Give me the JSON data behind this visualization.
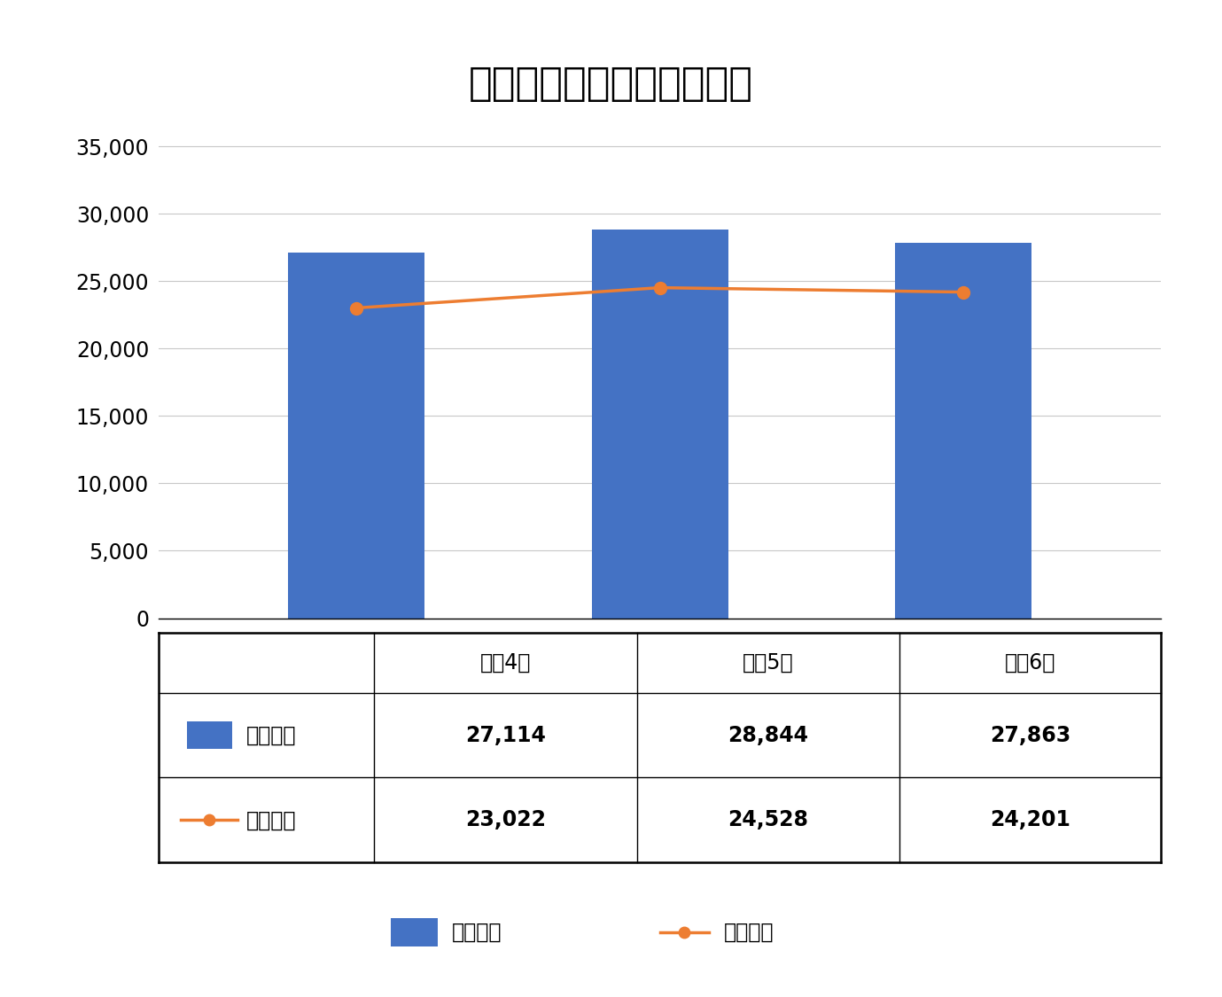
{
  "title": "過去の救急出動・搬送人員",
  "categories": [
    "令和4年",
    "令和5年",
    "令和6年"
  ],
  "bar_values": [
    27114,
    28844,
    27863
  ],
  "line_values": [
    23022,
    24528,
    24201
  ],
  "bar_data_texts": [
    "27,114",
    "28,844",
    "27,863"
  ],
  "line_data_texts": [
    "23,022",
    "24,528",
    "24,201"
  ],
  "bar_color": "#4472C4",
  "line_color": "#ED7D31",
  "ylim": [
    0,
    37000
  ],
  "yticks": [
    0,
    5000,
    10000,
    15000,
    20000,
    25000,
    30000,
    35000
  ],
  "bar_label": "出動件数",
  "line_label": "搬送人員",
  "background_color": "#ffffff",
  "title_fontsize": 32,
  "tick_fontsize": 17,
  "table_header_fontsize": 17,
  "table_data_fontsize": 17,
  "legend_fontsize": 17
}
